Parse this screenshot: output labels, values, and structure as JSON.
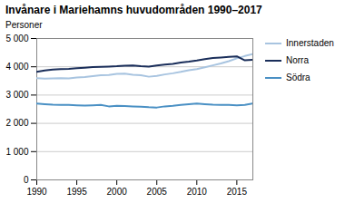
{
  "chart_data": {
    "type": "line",
    "title": "Invånare i Mariehamns huvudområden 1990–2017",
    "ylabel": "Personer",
    "x": [
      1990,
      1991,
      1992,
      1993,
      1994,
      1995,
      1996,
      1997,
      1998,
      1999,
      2000,
      2001,
      2002,
      2003,
      2004,
      2005,
      2006,
      2007,
      2008,
      2009,
      2010,
      2011,
      2012,
      2013,
      2014,
      2015,
      2016,
      2017
    ],
    "series": [
      {
        "name": "Innerstaden",
        "color": "#a8c4e0",
        "values": [
          3600,
          3580,
          3590,
          3600,
          3590,
          3620,
          3640,
          3670,
          3700,
          3710,
          3750,
          3760,
          3720,
          3700,
          3650,
          3680,
          3730,
          3770,
          3820,
          3880,
          3920,
          3980,
          4050,
          4120,
          4200,
          4300,
          4380,
          4450
        ]
      },
      {
        "name": "Norra",
        "color": "#1a2e5a",
        "values": [
          3820,
          3870,
          3900,
          3920,
          3930,
          3950,
          3970,
          3990,
          4000,
          4010,
          4020,
          4040,
          4050,
          4020,
          4010,
          4050,
          4080,
          4100,
          4150,
          4180,
          4220,
          4270,
          4310,
          4330,
          4350,
          4370,
          4230,
          4250
        ]
      },
      {
        "name": "Södra",
        "color": "#4a90c4",
        "values": [
          2700,
          2680,
          2660,
          2650,
          2650,
          2640,
          2630,
          2640,
          2650,
          2600,
          2620,
          2610,
          2600,
          2590,
          2570,
          2560,
          2600,
          2620,
          2650,
          2680,
          2700,
          2680,
          2660,
          2650,
          2650,
          2640,
          2650,
          2700
        ]
      }
    ],
    "xlim": [
      1990,
      2017
    ],
    "xticks": [
      1990,
      1995,
      2000,
      2005,
      2010,
      2015
    ],
    "ylim": [
      0,
      5000
    ],
    "yticks": [
      0,
      {
        "value": 1000,
        "label": "1 000"
      },
      {
        "value": 2000,
        "label": "2 000"
      },
      {
        "value": 3000,
        "label": "3 000"
      },
      {
        "value": 4000,
        "label": "4 000"
      },
      {
        "value": 5000,
        "label": "5 000"
      }
    ],
    "grid": "y",
    "legend": "right"
  }
}
